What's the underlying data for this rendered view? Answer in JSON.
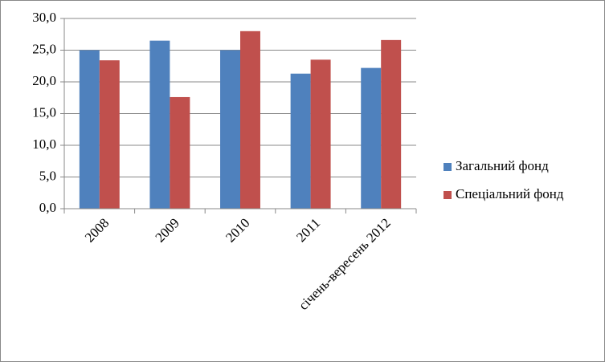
{
  "chart_data": {
    "type": "bar",
    "categories": [
      "2008",
      "2009",
      "2010",
      "2011",
      "січень-вересень 2012"
    ],
    "series": [
      {
        "name": "Загальний фонд",
        "color": "#4f81bd",
        "values": [
          25.0,
          26.5,
          25.0,
          21.3,
          22.2
        ]
      },
      {
        "name": "Спеціальний фонд",
        "color": "#c0504d",
        "values": [
          23.4,
          17.6,
          28.0,
          23.5,
          26.6
        ]
      }
    ],
    "ylim": [
      0,
      30
    ],
    "yticks": [
      {
        "value": 0,
        "label": "0,0"
      },
      {
        "value": 5,
        "label": "5,0"
      },
      {
        "value": 10,
        "label": "10,0"
      },
      {
        "value": 15,
        "label": "15,0"
      },
      {
        "value": 20,
        "label": "20,0"
      },
      {
        "value": 25,
        "label": "25,0"
      },
      {
        "value": 30,
        "label": "30,0"
      }
    ],
    "grid": true,
    "legend": "right"
  }
}
